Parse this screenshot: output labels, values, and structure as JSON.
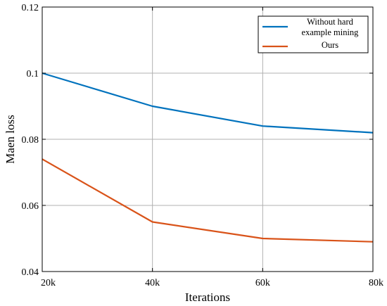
{
  "chart_data": {
    "type": "line",
    "title": "",
    "xlabel": "Iterations",
    "ylabel": "Maen loss",
    "categories": [
      "20k",
      "40k",
      "60k",
      "80k"
    ],
    "x_tick_labels": [
      "20k",
      "40k",
      "60k",
      "80k"
    ],
    "ylim": [
      0.04,
      0.12
    ],
    "y_ticks": [
      0.04,
      0.06,
      0.08,
      0.1,
      0.12
    ],
    "y_tick_labels": [
      "0.04",
      "0.06",
      "0.08",
      "0.1",
      "0.12"
    ],
    "grid": true,
    "legend_position": "top-right",
    "series": [
      {
        "name_lines": [
          "Without hard",
          "example mining"
        ],
        "color": "#0072BD",
        "values": [
          0.1,
          0.09,
          0.084,
          0.082
        ]
      },
      {
        "name_lines": [
          "Ours"
        ],
        "color": "#D95319",
        "values": [
          0.074,
          0.055,
          0.05,
          0.049
        ]
      }
    ]
  }
}
